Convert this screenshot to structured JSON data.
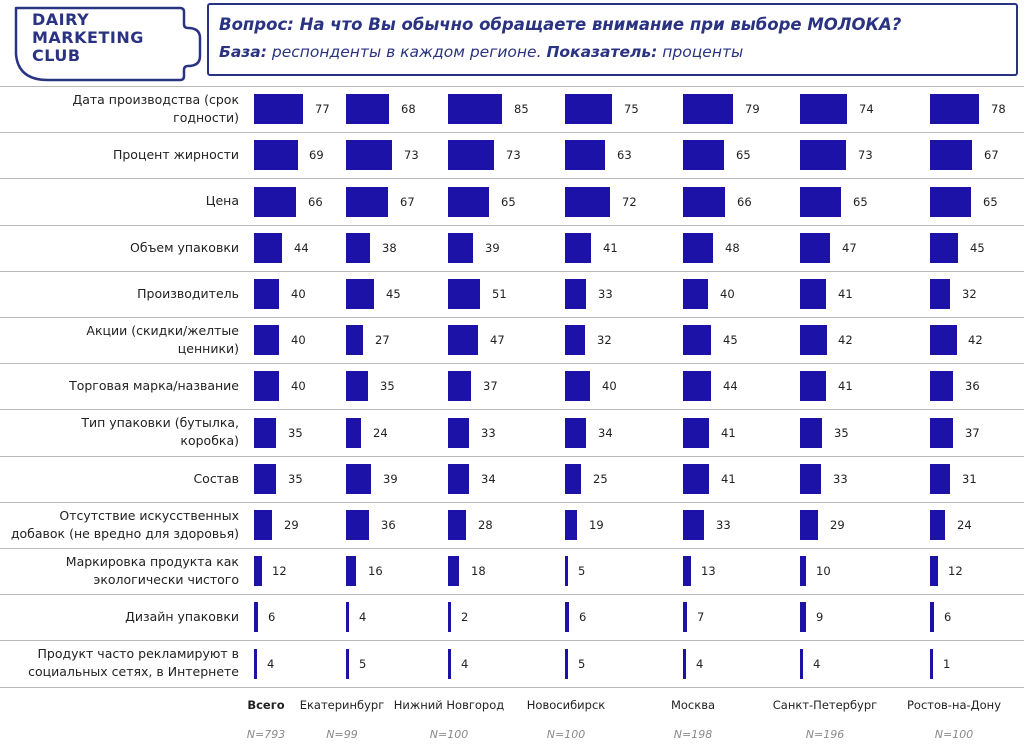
{
  "logo": {
    "line1": "DAIRY",
    "line2": "MARKETING",
    "line3": "CLUB",
    "color": "#2a3282"
  },
  "header": {
    "question_label": "Вопрос:",
    "question_text": "На что Вы обычно обращаете внимание при выборе МОЛОКА?",
    "base_label": "База:",
    "base_text": "респонденты в каждом регионе.",
    "indicator_label": "Показатель:",
    "indicator_text": "проценты"
  },
  "colors": {
    "bar": "#1c12a8",
    "accent": "#2a3282",
    "grid": "#b9b9b9"
  },
  "chart_data": {
    "type": "bar",
    "orientation": "horizontal",
    "categories": [
      "Дата производства (срок годности)",
      "Процент жирности",
      "Цена",
      "Объем упаковки",
      "Производитель",
      "Акции (скидки/желтые ценники)",
      "Торговая марка/название",
      "Тип упаковки (бутылка, коробка)",
      "Состав",
      "Отсутствие искусственных добавок (не вредно для здоровья)",
      "Маркировка продукта как экологически чистого",
      "Дизайн упаковки",
      "Продукт часто рекламируют в социальных сетях, в Интернете"
    ],
    "category_lines": [
      [
        "Дата производства (срок",
        "годности)"
      ],
      [
        "Процент жирности"
      ],
      [
        "Цена"
      ],
      [
        "Объем упаковки"
      ],
      [
        "Производитель"
      ],
      [
        "Акции (скидки/желтые",
        "ценники)"
      ],
      [
        "Торговая марка/название"
      ],
      [
        "Тип упаковки (бутылка,",
        "коробка)"
      ],
      [
        "Состав"
      ],
      [
        "Отсутствие искусственных",
        "добавок (не вредно для здоровья)"
      ],
      [
        "Маркировка продукта как",
        "экологически чистого"
      ],
      [
        "Дизайн упаковки"
      ],
      [
        "Продукт часто рекламируют в",
        "социальных сетях, в Интернете"
      ]
    ],
    "series": [
      {
        "name": "Всего",
        "n": "N=793",
        "values": [
          77,
          69,
          66,
          44,
          40,
          40,
          40,
          35,
          35,
          29,
          12,
          6,
          4
        ]
      },
      {
        "name": "Екатеринбург",
        "n": "N=99",
        "values": [
          68,
          73,
          67,
          38,
          45,
          27,
          35,
          24,
          39,
          36,
          16,
          4,
          5
        ]
      },
      {
        "name": "Нижний Новгород",
        "n": "N=100",
        "values": [
          85,
          73,
          65,
          39,
          51,
          47,
          37,
          33,
          34,
          28,
          18,
          2,
          4
        ]
      },
      {
        "name": "Новосибирск",
        "n": "N=100",
        "values": [
          75,
          63,
          72,
          41,
          33,
          32,
          40,
          34,
          25,
          19,
          5,
          6,
          5
        ]
      },
      {
        "name": "Москва",
        "n": "N=198",
        "values": [
          79,
          65,
          66,
          48,
          40,
          45,
          44,
          41,
          41,
          33,
          13,
          7,
          4
        ]
      },
      {
        "name": "Санкт-Петербург",
        "n": "N=196",
        "values": [
          74,
          73,
          65,
          47,
          41,
          42,
          41,
          35,
          33,
          29,
          10,
          9,
          4
        ]
      },
      {
        "name": "Ростов-на-Дону",
        "n": "N=100",
        "values": [
          78,
          67,
          65,
          45,
          32,
          42,
          36,
          37,
          31,
          24,
          12,
          6,
          1
        ]
      }
    ],
    "xlim": [
      0,
      100
    ],
    "grid": false,
    "legend": "none"
  }
}
